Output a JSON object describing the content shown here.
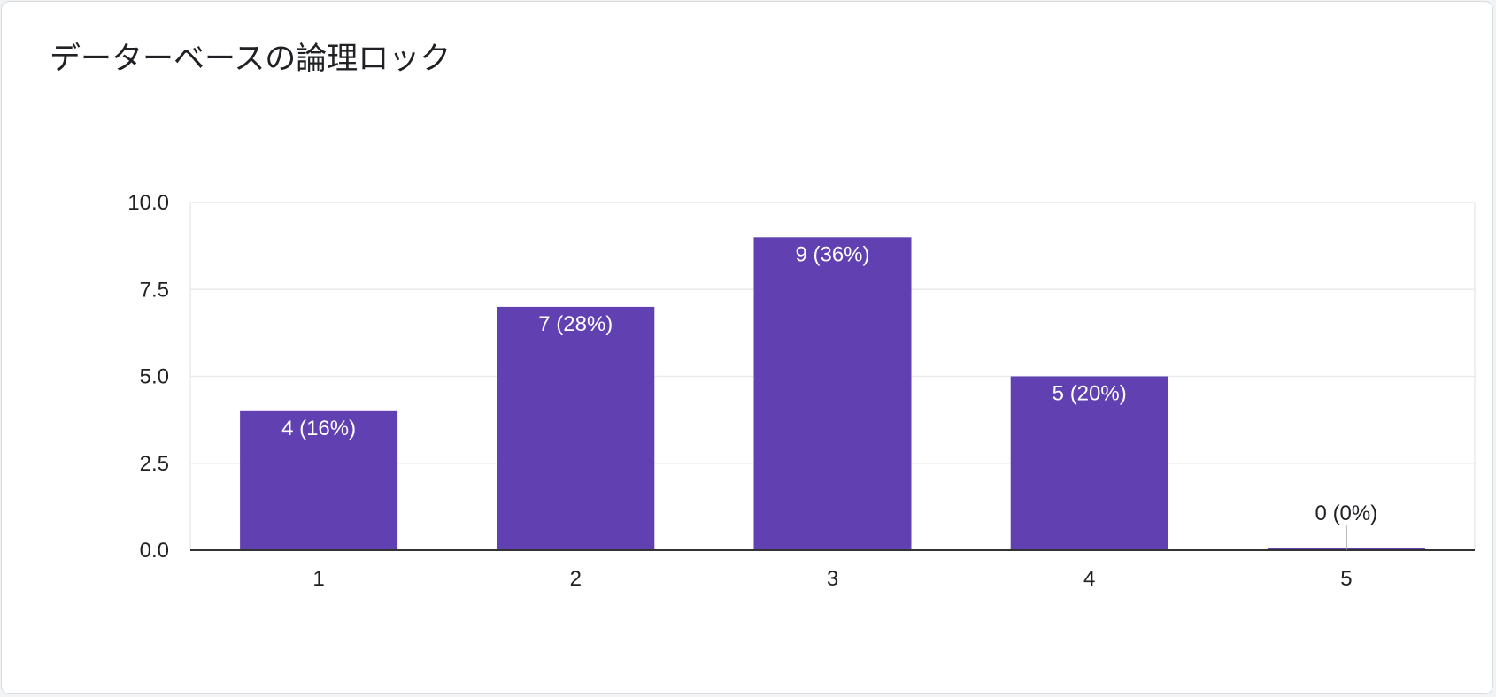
{
  "chart_data": {
    "type": "bar",
    "title": "データーベースの論理ロック",
    "categories": [
      "1",
      "2",
      "3",
      "4",
      "5"
    ],
    "values": [
      4,
      7,
      9,
      5,
      0
    ],
    "data_labels": [
      "4 (16%)",
      "7 (28%)",
      "9 (36%)",
      "5 (20%)",
      "0 (0%)"
    ],
    "xlabel": "",
    "ylabel": "",
    "ylim": [
      0,
      10
    ],
    "yticks": [
      0,
      2.5,
      5,
      7.5,
      10
    ],
    "ytick_labels": [
      "0.0",
      "2.5",
      "5.0",
      "7.5",
      "10.0"
    ],
    "grid": true,
    "legend": "none",
    "colors": {
      "bar": "#6141b1",
      "grid": "#e8eaed",
      "baseline": "#333333",
      "label_inside": "#ffffff",
      "label_outside": "#202124",
      "zero_marker": "#999999"
    }
  }
}
